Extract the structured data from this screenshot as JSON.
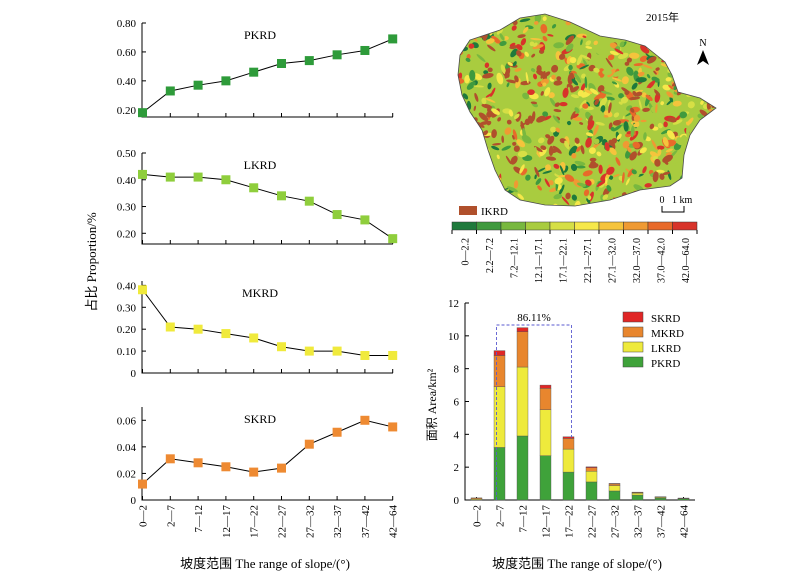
{
  "figure": {
    "left_ylabel": "占比 Proportion/%",
    "left_xlabel": "坡度范围 The range of slope/(°)",
    "right_xlabel": "坡度范围 The range of slope/(°)",
    "map_year": "2015年",
    "north_label": "N",
    "scale_label_0": "0",
    "scale_label_1": "1 km",
    "ikrd_label": "IKRD"
  },
  "slope_categories": [
    "0—2",
    "2—7",
    "7—12",
    "12—17",
    "17—22",
    "22—27",
    "27—32",
    "32—37",
    "37—42",
    "42—64"
  ],
  "map_legend": {
    "classes": [
      "0—2.2",
      "2.2—7.2",
      "7.2—12.1",
      "12.1—17.1",
      "17.1—22.1",
      "22.1—27.1",
      "27.1—32.0",
      "32.0—37.0",
      "37.0—42.0",
      "42.0—64.0"
    ],
    "colors": [
      "#1e7a3c",
      "#3f9a3e",
      "#78b83f",
      "#a9cc3f",
      "#d6df45",
      "#f6e84a",
      "#f5c43c",
      "#ef9a33",
      "#e86a2a",
      "#d8332a"
    ]
  },
  "map_colors": {
    "ikrd": "#b0502c"
  },
  "chart_data": [
    {
      "type": "line",
      "title": "PKRD",
      "color": "#2e9b3a",
      "categories": [
        "0—2",
        "2—7",
        "7—12",
        "12—17",
        "17—22",
        "22—27",
        "27—32",
        "32—37",
        "37—42",
        "42—64"
      ],
      "values": [
        0.18,
        0.33,
        0.37,
        0.4,
        0.46,
        0.52,
        0.54,
        0.58,
        0.61,
        0.69
      ],
      "ylim": [
        0.15,
        0.8
      ],
      "yticks": [
        "0.20",
        "0.40",
        "0.60",
        "0.80"
      ],
      "ytick_values": [
        0.2,
        0.4,
        0.6,
        0.8
      ]
    },
    {
      "type": "line",
      "title": "LKRD",
      "color": "#8fce3c",
      "categories": [
        "0—2",
        "2—7",
        "7—12",
        "12—17",
        "17—22",
        "22—27",
        "27—32",
        "32—37",
        "37—42",
        "42—64"
      ],
      "values": [
        0.42,
        0.41,
        0.41,
        0.4,
        0.37,
        0.34,
        0.32,
        0.27,
        0.25,
        0.18
      ],
      "ylim": [
        0.16,
        0.5
      ],
      "yticks": [
        "0.20",
        "0.30",
        "0.40",
        "0.50"
      ],
      "ytick_values": [
        0.2,
        0.3,
        0.4,
        0.5
      ]
    },
    {
      "type": "line",
      "title": "MKRD",
      "color": "#f0ea3c",
      "categories": [
        "0—2",
        "2—7",
        "7—12",
        "12—17",
        "17—22",
        "22—27",
        "27—32",
        "32—37",
        "37—42",
        "42—64"
      ],
      "values": [
        0.38,
        0.21,
        0.2,
        0.18,
        0.16,
        0.12,
        0.1,
        0.1,
        0.08,
        0.08
      ],
      "ylim": [
        0.0,
        0.42
      ],
      "yticks": [
        "0",
        "0.10",
        "0.20",
        "0.30",
        "0.40"
      ],
      "ytick_values": [
        0,
        0.1,
        0.2,
        0.3,
        0.4
      ]
    },
    {
      "type": "line",
      "title": "SKRD",
      "color": "#ee8a32",
      "categories": [
        "0—2",
        "2—7",
        "7—12",
        "12—17",
        "17—22",
        "22—27",
        "27—32",
        "32—37",
        "37—42",
        "42—64"
      ],
      "values": [
        0.012,
        0.031,
        0.028,
        0.025,
        0.021,
        0.024,
        0.042,
        0.051,
        0.06,
        0.055
      ],
      "ylim": [
        0.0,
        0.07
      ],
      "yticks": [
        "0",
        "0.02",
        "0.04",
        "0.06"
      ],
      "ytick_values": [
        0,
        0.02,
        0.04,
        0.06
      ]
    },
    {
      "type": "bar",
      "stacked": true,
      "ylabel": "面积 Area/km²",
      "categories": [
        "0—2",
        "2—7",
        "7—12",
        "12—17",
        "17—22",
        "22—27",
        "27—32",
        "32—37",
        "37—42",
        "42—64"
      ],
      "ylim": [
        0,
        12
      ],
      "yticks": [
        "0",
        "2",
        "4",
        "6",
        "8",
        "10",
        "12"
      ],
      "ytick_values": [
        0,
        2,
        4,
        6,
        8,
        10,
        12
      ],
      "annotation": "86.11%",
      "legend_placement": "top-right",
      "series": [
        {
          "name": "PKRD",
          "color": "#3fa23a",
          "values": [
            0.02,
            3.2,
            3.9,
            2.7,
            1.7,
            1.1,
            0.55,
            0.3,
            0.12,
            0.08
          ]
        },
        {
          "name": "LKRD",
          "color": "#eeea3c",
          "values": [
            0.05,
            3.7,
            4.2,
            2.8,
            1.4,
            0.65,
            0.33,
            0.12,
            0.05,
            0.02
          ]
        },
        {
          "name": "MKRD",
          "color": "#e8862e",
          "values": [
            0.06,
            1.9,
            2.15,
            1.3,
            0.65,
            0.22,
            0.1,
            0.04,
            0.02,
            0.01
          ]
        },
        {
          "name": "SKRD",
          "color": "#e02626",
          "values": [
            0.0,
            0.3,
            0.25,
            0.2,
            0.1,
            0.05,
            0.03,
            0.02,
            0.01,
            0.01
          ]
        }
      ],
      "legend_order": [
        "SKRD",
        "MKRD",
        "LKRD",
        "PKRD"
      ]
    }
  ]
}
